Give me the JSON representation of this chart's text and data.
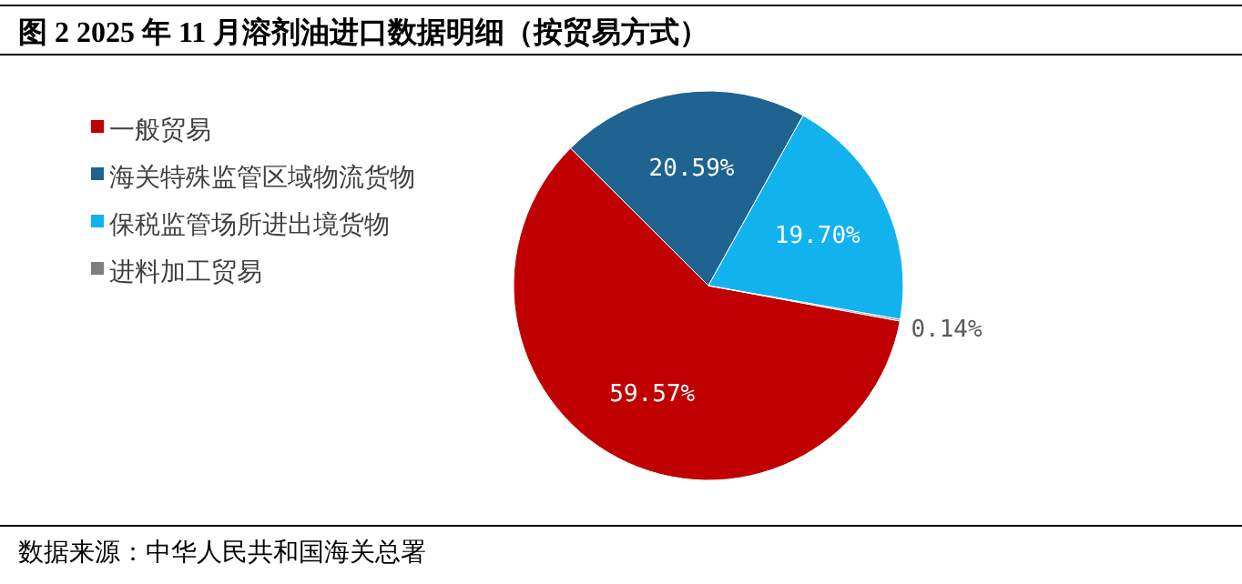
{
  "chart_data": {
    "type": "pie",
    "title": "图 2 2025 年 11 月溶剂油进口数据明细（按贸易方式）",
    "categories": [
      "一般贸易",
      "海关特殊监管区域物流货物",
      "保税监管场所进出境货物",
      "进料加工贸易"
    ],
    "values": [
      59.57,
      20.59,
      19.7,
      0.14
    ],
    "value_labels": [
      "59.57%",
      "20.59%",
      "19.70%",
      "0.14%"
    ],
    "colors": [
      "#c00000",
      "#1f6390",
      "#12b2ef",
      "#7f7f7f"
    ],
    "legend": "left",
    "annotations": [
      "数据来源：中华人民共和国海关总署"
    ]
  }
}
